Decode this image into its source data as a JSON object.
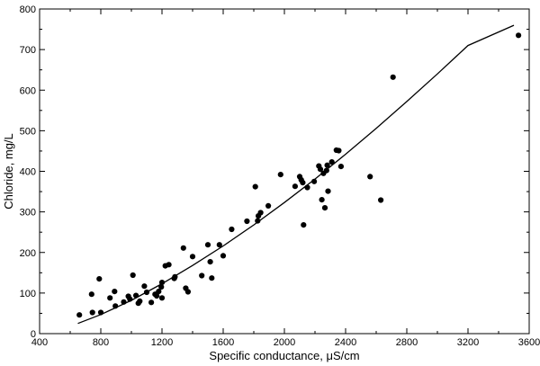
{
  "chart_data": {
    "type": "scatter",
    "xlabel": "Specific conductance, μS/cm",
    "ylabel": "Chloride, mg/L",
    "xlim": [
      400,
      3600
    ],
    "ylim": [
      0,
      800
    ],
    "x_ticks": [
      400,
      800,
      1200,
      1600,
      2000,
      2400,
      2800,
      3200,
      3600
    ],
    "y_ticks": [
      0,
      100,
      200,
      300,
      400,
      500,
      600,
      700,
      800
    ],
    "grid": false,
    "series": [
      {
        "type": "scatter",
        "points": [
          [
            660,
            46
          ],
          [
            740,
            97
          ],
          [
            745,
            52
          ],
          [
            790,
            135
          ],
          [
            800,
            52
          ],
          [
            860,
            88
          ],
          [
            890,
            104
          ],
          [
            895,
            68
          ],
          [
            950,
            78
          ],
          [
            980,
            92
          ],
          [
            990,
            85
          ],
          [
            1010,
            144
          ],
          [
            1030,
            94
          ],
          [
            1045,
            75
          ],
          [
            1055,
            80
          ],
          [
            1085,
            117
          ],
          [
            1100,
            102
          ],
          [
            1130,
            77
          ],
          [
            1155,
            97
          ],
          [
            1165,
            93
          ],
          [
            1178,
            104
          ],
          [
            1195,
            115
          ],
          [
            1200,
            88
          ],
          [
            1200,
            126
          ],
          [
            1222,
            167
          ],
          [
            1245,
            170
          ],
          [
            1280,
            136
          ],
          [
            1285,
            140
          ],
          [
            1340,
            211
          ],
          [
            1355,
            112
          ],
          [
            1370,
            103
          ],
          [
            1400,
            190
          ],
          [
            1460,
            143
          ],
          [
            1500,
            219
          ],
          [
            1515,
            177
          ],
          [
            1525,
            137
          ],
          [
            1575,
            219
          ],
          [
            1600,
            192
          ],
          [
            1655,
            257
          ],
          [
            1755,
            277
          ],
          [
            1810,
            362
          ],
          [
            1825,
            278
          ],
          [
            1830,
            290
          ],
          [
            1845,
            298
          ],
          [
            1895,
            315
          ],
          [
            1975,
            392
          ],
          [
            2070,
            363
          ],
          [
            2100,
            387
          ],
          [
            2110,
            379
          ],
          [
            2120,
            372
          ],
          [
            2125,
            268
          ],
          [
            2150,
            360
          ],
          [
            2195,
            375
          ],
          [
            2225,
            413
          ],
          [
            2235,
            405
          ],
          [
            2245,
            330
          ],
          [
            2255,
            395
          ],
          [
            2265,
            310
          ],
          [
            2275,
            402
          ],
          [
            2280,
            415
          ],
          [
            2285,
            351
          ],
          [
            2310,
            423
          ],
          [
            2340,
            452
          ],
          [
            2355,
            451
          ],
          [
            2370,
            412
          ],
          [
            2560,
            387
          ],
          [
            2630,
            329
          ],
          [
            2710,
            632
          ],
          [
            3530,
            735
          ]
        ]
      },
      {
        "type": "line",
        "points": [
          [
            650,
            25
          ],
          [
            800,
            47
          ],
          [
            1000,
            82
          ],
          [
            1200,
            123
          ],
          [
            1400,
            168
          ],
          [
            1600,
            216
          ],
          [
            1800,
            268
          ],
          [
            2000,
            323
          ],
          [
            2200,
            381
          ],
          [
            2400,
            442
          ],
          [
            2600,
            506
          ],
          [
            2800,
            572
          ],
          [
            3000,
            640
          ],
          [
            3200,
            710
          ],
          [
            3500,
            760
          ]
        ]
      }
    ]
  }
}
